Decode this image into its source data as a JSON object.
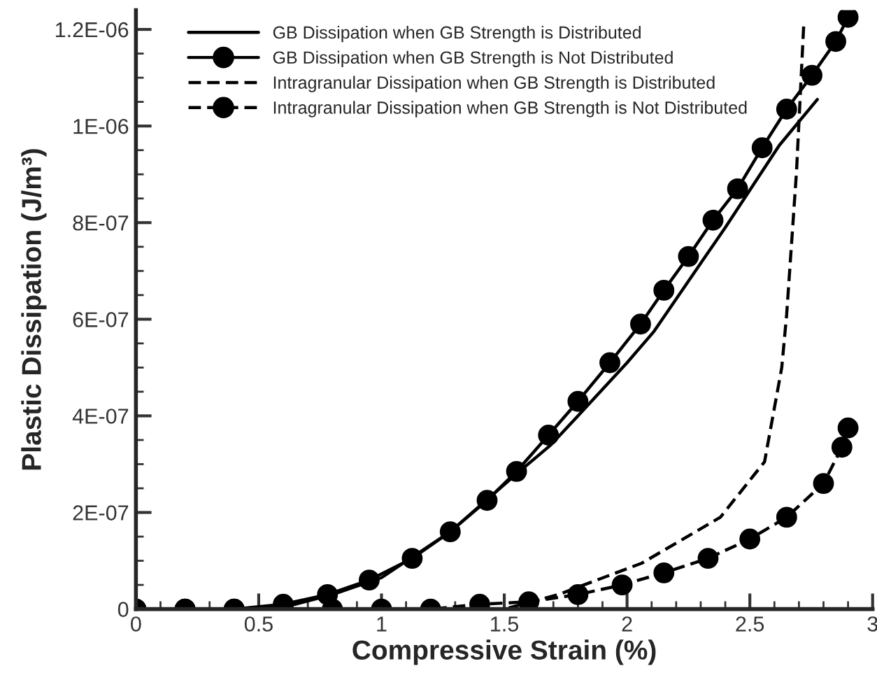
{
  "chart_data": {
    "type": "line",
    "xlabel": "Compressive Strain (%)",
    "ylabel": "Plastic Dissipation (J/m³)",
    "xlim": [
      0,
      3
    ],
    "ylim": [
      0,
      1.24e-06
    ],
    "xticks": [
      0,
      0.5,
      1,
      1.5,
      2,
      2.5,
      3
    ],
    "yticks": [
      {
        "value": 0,
        "label": "0"
      },
      {
        "value": 2e-07,
        "label": "2E-07"
      },
      {
        "value": 4e-07,
        "label": "4E-07"
      },
      {
        "value": 6e-07,
        "label": "6E-07"
      },
      {
        "value": 8e-07,
        "label": "8E-07"
      },
      {
        "value": 1e-06,
        "label": "1E-06"
      },
      {
        "value": 1.2e-06,
        "label": "1.2E-06"
      }
    ],
    "legend": "top left",
    "grid": false,
    "series": [
      {
        "name": "GB Dissipation when GB Strength is Distributed",
        "color": "#000000",
        "marker": "none",
        "line_style": "solid",
        "x": [
          0,
          0.3,
          0.5,
          0.65,
          0.8,
          1.0,
          1.28,
          1.55,
          1.69,
          1.8,
          2.0,
          2.11,
          2.4,
          2.62,
          2.775
        ],
        "values": [
          0,
          0,
          0,
          1e-08,
          3e-08,
          6.5e-08,
          1.6e-07,
          2.8e-07,
          3.4e-07,
          4e-07,
          5.1e-07,
          5.75e-07,
          7.9e-07,
          9.6e-07,
          1.055e-06
        ]
      },
      {
        "name": "GB Dissipation when GB Strength is Not Distributed",
        "color": "#000000",
        "marker": "circle",
        "line_style": "solid",
        "x": [
          0,
          0.2,
          0.4,
          0.6,
          0.78,
          0.95,
          1.125,
          1.28,
          1.43,
          1.55,
          1.68,
          1.8,
          1.93,
          2.055,
          2.15,
          2.25,
          2.35,
          2.45,
          2.55,
          2.65,
          2.753,
          2.85,
          2.9
        ],
        "values": [
          0,
          0,
          0,
          1e-08,
          3e-08,
          6e-08,
          1.05e-07,
          1.6e-07,
          2.25e-07,
          2.85e-07,
          3.6e-07,
          4.3e-07,
          5.1e-07,
          5.9e-07,
          6.6e-07,
          7.3e-07,
          8.05e-07,
          8.7e-07,
          9.55e-07,
          1.035e-06,
          1.105e-06,
          1.175e-06,
          1.225e-06
        ]
      },
      {
        "name": "Intragranular Dissipation when GB Strength is Distributed",
        "color": "#000000",
        "marker": "none",
        "line_style": "dashed",
        "x": [
          0,
          1.2,
          1.5,
          1.72,
          2.06,
          2.38,
          2.56,
          2.63,
          2.65,
          2.69,
          2.72
        ],
        "values": [
          0,
          0,
          0,
          3e-08,
          9.5e-08,
          1.9e-07,
          3.05e-07,
          5e-07,
          6.1e-07,
          9.05e-07,
          1.215e-06
        ]
      },
      {
        "name": "Intragranular Dissipation when GB Strength is Not Distributed",
        "color": "#000000",
        "marker": "circle",
        "line_style": "dashed",
        "x": [
          0,
          0.2,
          0.4,
          0.6,
          0.8,
          1.0,
          1.2,
          1.4,
          1.6,
          1.8,
          1.98,
          2.15,
          2.33,
          2.5,
          2.65,
          2.8,
          2.875,
          2.9
        ],
        "values": [
          0,
          0,
          0,
          0,
          0,
          0,
          0,
          1e-08,
          1.5e-08,
          3e-08,
          5e-08,
          7.5e-08,
          1.05e-07,
          1.45e-07,
          1.9e-07,
          2.6e-07,
          3.35e-07,
          3.75e-07
        ]
      }
    ]
  }
}
